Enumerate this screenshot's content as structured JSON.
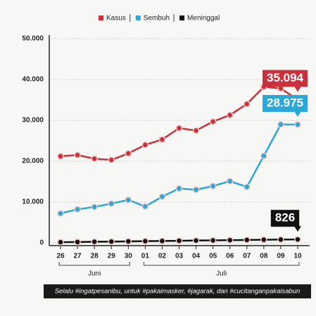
{
  "chart_data": {
    "type": "line",
    "categories": [
      "26",
      "27",
      "28",
      "29",
      "30",
      "01",
      "02",
      "03",
      "04",
      "05",
      "06",
      "07",
      "08",
      "09",
      "10"
    ],
    "months": [
      "Juni",
      "Juli"
    ],
    "series": [
      {
        "name": "Kasus",
        "color": "#c8323c",
        "values": [
          21200,
          21500,
          20600,
          20300,
          21900,
          24000,
          25300,
          28100,
          27500,
          29700,
          31300,
          34000,
          38200,
          37800,
          35094
        ],
        "value_labels": [
          null,
          null,
          null,
          null,
          null,
          null,
          null,
          null,
          null,
          null,
          null,
          null,
          null,
          null,
          "35.094"
        ]
      },
      {
        "name": "Sembuh",
        "color": "#2aa8d8",
        "values": [
          7200,
          8200,
          8800,
          9600,
          10500,
          8900,
          11300,
          13300,
          13000,
          13900,
          15100,
          13700,
          21300,
          29000,
          28975
        ],
        "value_labels": [
          null,
          null,
          null,
          null,
          null,
          null,
          null,
          null,
          null,
          null,
          null,
          null,
          null,
          null,
          "28.975"
        ]
      },
      {
        "name": "Meninggal",
        "color": "#111111",
        "values": [
          150,
          200,
          250,
          300,
          350,
          400,
          450,
          500,
          550,
          600,
          650,
          700,
          750,
          800,
          826
        ],
        "value_labels": [
          null,
          null,
          null,
          null,
          null,
          null,
          null,
          null,
          null,
          null,
          null,
          null,
          null,
          null,
          "826"
        ]
      }
    ],
    "ylim": [
      0,
      50000
    ],
    "yticks": [
      0,
      {
        "value": 10000,
        "label": "10.000"
      },
      {
        "value": 20000,
        "label": "20.000"
      },
      {
        "value": 30000,
        "label": "30.000"
      },
      {
        "value": 40000,
        "label": "40.000"
      },
      {
        "value": 50000,
        "label": "50.000"
      }
    ],
    "grid": true,
    "footer_note": "Selalu #ingatpesanibu, untuk #pakaimasker, #jagarak, dan #cucitanganpakaisabun"
  }
}
